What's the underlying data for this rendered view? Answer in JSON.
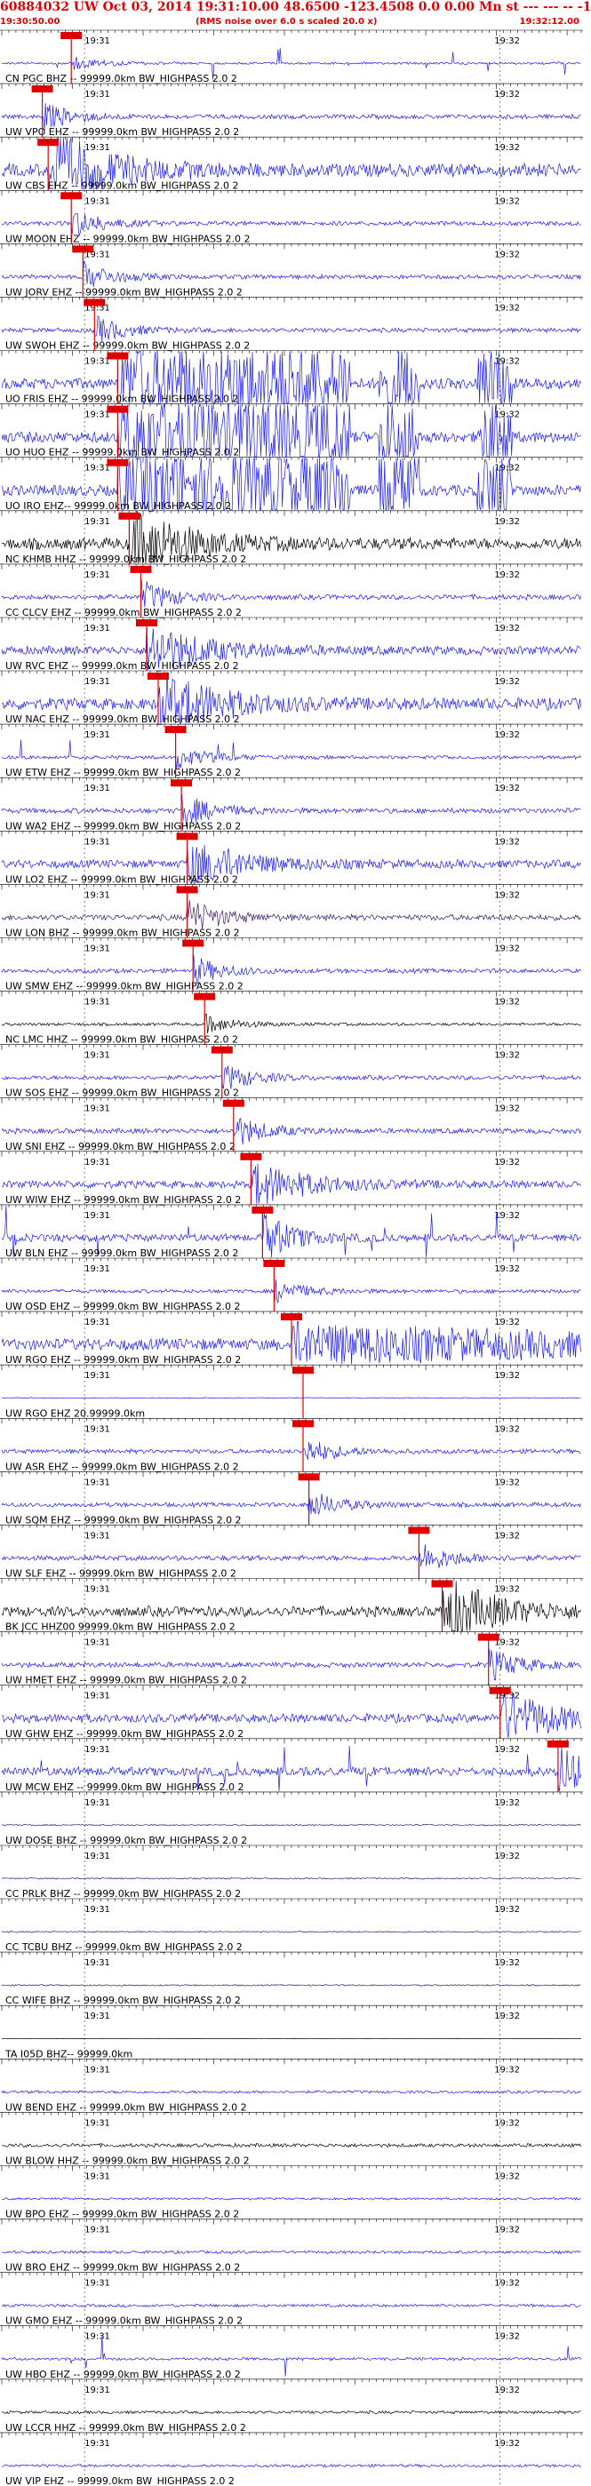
{
  "header": {
    "title": "60884032 UW Oct 03, 2014 19:31:10.00    48.6500 -123.4508  0.0 0.00 Mn st --- --- -- -1",
    "start_time": "19:30:50.00",
    "note": "(RMS noise over 6.0 s scaled 20.0 x)",
    "end_time": "19:32:12.00"
  },
  "chart_data": {
    "type": "line",
    "title": "60884032 UW Oct 03, 2014 19:31:10.00    48.6500 -123.4508  0.0 0.00 Mn st --- --- -- -1",
    "x_range": [
      "19:30:50.00",
      "19:32:12.00"
    ],
    "tick_labels": [
      "19:31",
      "19:32"
    ],
    "grid": true,
    "colors": {
      "header": "#e00000",
      "pick": "#e00000",
      "trace_blue": "#1a1aff",
      "trace_black": "#000000",
      "trace_purple": "#3b1a6e"
    },
    "traces": [
      {
        "label": "CN PGC BHZ -- 99999.0km BW_HIGHPASS 2.0 2",
        "pick": "",
        "amp": 0.15,
        "arrival": 0.12,
        "color": "blue",
        "style": "spikes"
      },
      {
        "label": "UW VPO EHZ -- 99999.0km BW_HIGHPASS 2.0 2",
        "pick": "",
        "amp": 0.3,
        "arrival": 0.07,
        "color": "blue",
        "style": "normal"
      },
      {
        "label": "UW CBS EHZ -- 99999.0km BW_HIGHPASS 2.0 2",
        "pick": "",
        "amp": 0.9,
        "arrival": 0.08,
        "color": "blue",
        "style": "burst"
      },
      {
        "label": "UW MOON EHZ -- 99999.0km BW_HIGHPASS 2.0 2",
        "pick": "",
        "amp": 0.3,
        "arrival": 0.12,
        "color": "blue",
        "style": "normal"
      },
      {
        "label": "UW JORV EHZ -- 99999.0km BW_HIGHPASS 2.0 2",
        "pick": "",
        "amp": 0.3,
        "arrival": 0.14,
        "color": "blue",
        "style": "normal"
      },
      {
        "label": "UW SWOH EHZ -- 99999.0km BW_HIGHPASS 2.0 2",
        "pick": "",
        "amp": 0.3,
        "arrival": 0.16,
        "color": "blue",
        "style": "normal"
      },
      {
        "label": "UO FRIS EHZ -- 99999.0km BW_HIGHPASS 2.0 2",
        "pick": "",
        "amp": 1.0,
        "arrival": 0.2,
        "color": "blue",
        "style": "clip"
      },
      {
        "label": "UO HUO EHZ -- 99999.0km BW_HIGHPASS 2.0 2",
        "pick": "",
        "amp": 1.0,
        "arrival": 0.2,
        "color": "blue",
        "style": "clip"
      },
      {
        "label": "UO IRO EHZ-- 99999.0km BW_HIGHPASS 2.0 2",
        "pick": "",
        "amp": 1.0,
        "arrival": 0.2,
        "color": "blue",
        "style": "clip"
      },
      {
        "label": "NC KHMB HHZ -- 99999.0km BW_HIGHPASS 2.0 2",
        "pick": "",
        "amp": 0.8,
        "arrival": 0.22,
        "color": "black",
        "style": "burst"
      },
      {
        "label": "CC CLCV EHZ -- 99999.0km BW_HIGHPASS 2.0 2",
        "pick": "",
        "amp": 0.35,
        "arrival": 0.24,
        "color": "blue",
        "style": "normal"
      },
      {
        "label": "UW RVC EHZ -- 99999.0km BW_HIGHPASS 2.0 2",
        "pick": "",
        "amp": 0.6,
        "arrival": 0.25,
        "color": "blue",
        "style": "burst"
      },
      {
        "label": "UW NAC EHZ -- 99999.0km BW_HIGHPASS 2.0 2",
        "pick": "",
        "amp": 0.8,
        "arrival": 0.27,
        "color": "blue",
        "style": "burst"
      },
      {
        "label": "UW ETW EHZ -- 99999.0km BW_HIGHPASS 2.0 2",
        "pick": "",
        "amp": 0.25,
        "arrival": 0.3,
        "color": "blue",
        "style": "spikes"
      },
      {
        "label": "UW WA2 EHZ -- 99999.0km BW_HIGHPASS 2.0 2",
        "pick": "",
        "amp": 0.35,
        "arrival": 0.31,
        "color": "blue",
        "style": "normal"
      },
      {
        "label": "UW LO2 EHZ -- 99999.0km BW_HIGHPASS 2.0 2",
        "pick": "",
        "amp": 0.55,
        "arrival": 0.32,
        "color": "blue",
        "style": "burst"
      },
      {
        "label": "UW LON BHZ -- 99999.0km BW_HIGHPASS 2.0 2",
        "pick": "",
        "amp": 0.4,
        "arrival": 0.32,
        "color": "purple",
        "style": "normal"
      },
      {
        "label": "UW SMW EHZ -- 99999.0km BW_HIGHPASS 2.0 2",
        "pick": "",
        "amp": 0.3,
        "arrival": 0.33,
        "color": "blue",
        "style": "normal"
      },
      {
        "label": "NC LMC HHZ -- 99999.0km BW_HIGHPASS 2.0 2",
        "pick": "",
        "amp": 0.2,
        "arrival": 0.35,
        "color": "black",
        "style": "normal"
      },
      {
        "label": "UW SOS EHZ -- 99999.0km BW_HIGHPASS 2.0 2",
        "pick": "",
        "amp": 0.3,
        "arrival": 0.38,
        "color": "blue",
        "style": "normal"
      },
      {
        "label": "UW SNI EHZ -- 99999.0km BW_HIGHPASS 2.0 2",
        "pick": "",
        "amp": 0.35,
        "arrival": 0.4,
        "color": "blue",
        "style": "normal"
      },
      {
        "label": "UW WIW EHZ -- 99999.0km BW_HIGHPASS 2.0 2",
        "pick": "",
        "amp": 0.5,
        "arrival": 0.43,
        "color": "blue",
        "style": "burst"
      },
      {
        "label": "UW BLN EHZ -- 99999.0km BW_HIGHPASS 2.0 2",
        "pick": "",
        "amp": 0.5,
        "arrival": 0.45,
        "color": "blue",
        "style": "spikes"
      },
      {
        "label": "UW OSD EHZ -- 99999.0km BW_HIGHPASS 2.0 2",
        "pick": "",
        "amp": 0.25,
        "arrival": 0.47,
        "color": "blue",
        "style": "normal"
      },
      {
        "label": "UW RGO EHZ -- 99999.0km BW_HIGHPASS 2.0 2",
        "pick": "",
        "amp": 0.8,
        "arrival": 0.5,
        "color": "blue",
        "style": "late"
      },
      {
        "label": "UW RGO EHZ 20.99999.0km",
        "pick": "",
        "amp": 0.05,
        "arrival": 0.52,
        "color": "blue",
        "style": "flat"
      },
      {
        "label": "UW ASR EHZ -- 99999.0km BW_HIGHPASS 2.0 2",
        "pick": "",
        "amp": 0.3,
        "arrival": 0.52,
        "color": "blue",
        "style": "normal"
      },
      {
        "label": "UW SQM EHZ -- 99999.0km BW_HIGHPASS 2.0 2",
        "pick": "",
        "amp": 0.3,
        "arrival": 0.53,
        "color": "blue",
        "style": "normal"
      },
      {
        "label": "UW SLF EHZ -- 99999.0km BW_HIGHPASS 2.0 2",
        "pick": "",
        "amp": 0.35,
        "arrival": 0.72,
        "color": "blue",
        "style": "normal"
      },
      {
        "label": "BK JCC HHZ00 99999.0km BW_HIGHPASS 2.0 2",
        "pick": "",
        "amp": 0.7,
        "arrival": 0.76,
        "color": "black",
        "style": "burst"
      },
      {
        "label": "UW HMET EHZ -- 99999.0km BW_HIGHPASS 2.0 2",
        "pick": "",
        "amp": 0.35,
        "arrival": 0.84,
        "color": "blue",
        "style": "normal"
      },
      {
        "label": "UW GHW EHZ -- 99999.0km BW_HIGHPASS 2.0 2",
        "pick": "",
        "amp": 0.6,
        "arrival": 0.86,
        "color": "blue",
        "style": "burst"
      },
      {
        "label": "UW MCW EHZ -- 99999.0km BW_HIGHPASS 2.0 2",
        "pick": "",
        "amp": 0.6,
        "arrival": 0.96,
        "color": "blue",
        "style": "spikes"
      },
      {
        "label": "UW DOSE BHZ -- 99999.0km BW_HIGHPASS 2.0 2",
        "pick": "",
        "amp": 0.1,
        "arrival": 2,
        "color": "purple",
        "style": "normal"
      },
      {
        "label": "CC PRLK BHZ -- 99999.0km BW_HIGHPASS 2.0 2",
        "pick": "",
        "amp": 0.1,
        "arrival": 2,
        "color": "purple",
        "style": "normal"
      },
      {
        "label": "CC TCBU BHZ -- 99999.0km BW_HIGHPASS 2.0 2",
        "pick": "",
        "amp": 0.1,
        "arrival": 2,
        "color": "purple",
        "style": "normal"
      },
      {
        "label": "CC WIFE BHZ -- 99999.0km BW_HIGHPASS 2.0 2",
        "pick": "",
        "amp": 0.1,
        "arrival": 2,
        "color": "purple",
        "style": "normal"
      },
      {
        "label": "TA I05D BHZ-- 99999.0km",
        "pick": "",
        "amp": 0.02,
        "arrival": 2,
        "color": "black",
        "style": "flat"
      },
      {
        "label": "UW BEND EHZ -- 99999.0km BW_HIGHPASS 2.0 2",
        "pick": "",
        "amp": 0.2,
        "arrival": 2,
        "color": "blue",
        "style": "normal"
      },
      {
        "label": "UW BLOW HHZ -- 99999.0km BW_HIGHPASS 2.0 2",
        "pick": "",
        "amp": 0.25,
        "arrival": 2,
        "color": "black",
        "style": "normal"
      },
      {
        "label": "UW BPO EHZ -- 99999.0km BW_HIGHPASS 2.0 2",
        "pick": "",
        "amp": 0.15,
        "arrival": 2,
        "color": "blue",
        "style": "normal"
      },
      {
        "label": "UW BRO EHZ -- 99999.0km BW_HIGHPASS 2.0 2",
        "pick": "",
        "amp": 0.2,
        "arrival": 2,
        "color": "blue",
        "style": "normal"
      },
      {
        "label": "UW GMO EHZ -- 99999.0km BW_HIGHPASS 2.0 2",
        "pick": "",
        "amp": 0.2,
        "arrival": 2,
        "color": "blue",
        "style": "normal"
      },
      {
        "label": "UW HBO EHZ -- 99999.0km BW_HIGHPASS 2.0 2",
        "pick": "",
        "amp": 0.2,
        "arrival": 2,
        "color": "blue",
        "style": "spikes"
      },
      {
        "label": "UW LCCR HHZ -- 99999.0km BW_HIGHPASS 2.0 2",
        "pick": "",
        "amp": 0.2,
        "arrival": 2,
        "color": "black",
        "style": "normal"
      },
      {
        "label": "UW VIP EHZ -- 99999.0km BW_HIGHPASS 2.0 2",
        "pick": "",
        "amp": 0.2,
        "arrival": 2,
        "color": "blue",
        "style": "normal"
      }
    ]
  }
}
